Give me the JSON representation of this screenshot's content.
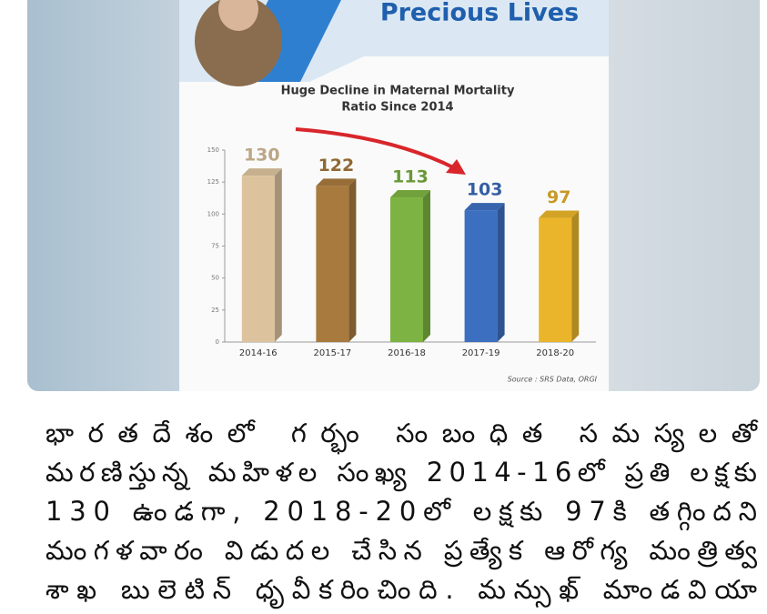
{
  "header": {
    "headline": "Precious Lives"
  },
  "chart_data": {
    "type": "bar",
    "title": [
      "Huge Decline in Maternal Mortality",
      "Ratio Since 2014"
    ],
    "categories": [
      "2014-16",
      "2015-17",
      "2016-18",
      "2017-19",
      "2018-20"
    ],
    "values": [
      130,
      122,
      113,
      103,
      97
    ],
    "colors": [
      "#dcc39e",
      "#a87a3e",
      "#7cb342",
      "#3d6fc0",
      "#eab52a"
    ],
    "ylim": [
      0,
      150
    ],
    "yticks": [
      0,
      25,
      50,
      75,
      100,
      125,
      150
    ],
    "source": "Source : SRS Data, ORGI"
  },
  "post": {
    "lines": [
      "భారతదేశంలో గర్భం సంబంధిత సమస్యలతో",
      "మరణిస్తున్న మహిళల సంఖ్య 2014-16లో ప్రతి లక్షకు",
      "130 ఉండగా, 2018-20లో లక్షకు 97కి తగ్గిందని",
      "మంగళవారం విడుదల చేసిన ప్రత్యేక ఆరోగ్య మంత్రిత్వ",
      "శాఖ బులెటిన్ ధృవీకరించింది. మన్సుఖ్ మాండవియా"
    ]
  }
}
